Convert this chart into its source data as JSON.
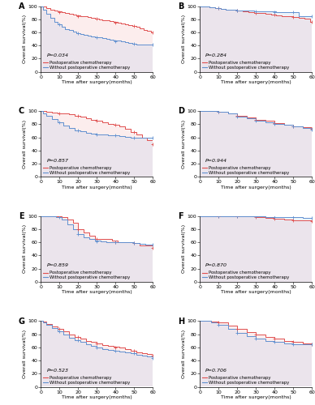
{
  "panels": [
    {
      "label": "A",
      "p_value": "P=0.034",
      "red_curve": {
        "x": [
          0,
          1,
          3,
          5,
          7,
          9,
          11,
          13,
          15,
          17,
          19,
          21,
          23,
          25,
          27,
          29,
          31,
          33,
          35,
          37,
          39,
          41,
          43,
          45,
          47,
          49,
          51,
          53,
          55,
          57,
          59,
          60
        ],
        "y": [
          100,
          99,
          97,
          95,
          93,
          92,
          91,
          90,
          88,
          87,
          86,
          85,
          84,
          83,
          82,
          81,
          80,
          79,
          78,
          77,
          76,
          75,
          74,
          72,
          71,
          70,
          68,
          66,
          64,
          62,
          60,
          60
        ]
      },
      "blue_curve": {
        "x": [
          0,
          1,
          3,
          5,
          7,
          9,
          11,
          13,
          15,
          17,
          19,
          21,
          23,
          25,
          27,
          29,
          31,
          33,
          35,
          37,
          39,
          41,
          43,
          45,
          47,
          49,
          51,
          53,
          55,
          57,
          59,
          60
        ],
        "y": [
          100,
          95,
          88,
          82,
          76,
          72,
          68,
          65,
          63,
          61,
          59,
          57,
          56,
          55,
          54,
          53,
          52,
          51,
          50,
          49,
          48,
          47,
          46,
          45,
          44,
          43,
          42,
          41,
          41,
          41,
          41,
          41
        ]
      },
      "red_censor_x": [
        10,
        20,
        30,
        40,
        50,
        60
      ],
      "red_censor_y": [
        91,
        85,
        81,
        75,
        70,
        60
      ],
      "blue_censor_x": [
        10,
        20,
        30,
        40,
        50,
        60
      ],
      "blue_censor_y": [
        72,
        59,
        53,
        46,
        43,
        41
      ]
    },
    {
      "label": "B",
      "p_value": "P=0.284",
      "red_curve": {
        "x": [
          0,
          2,
          5,
          8,
          11,
          14,
          17,
          20,
          23,
          26,
          29,
          32,
          35,
          38,
          41,
          44,
          47,
          50,
          53,
          56,
          59,
          60
        ],
        "y": [
          100,
          99,
          98,
          97,
          96,
          95,
          94,
          93,
          92,
          91,
          90,
          89,
          88,
          87,
          86,
          85,
          84,
          83,
          82,
          81,
          76,
          76
        ]
      },
      "blue_curve": {
        "x": [
          0,
          2,
          5,
          8,
          11,
          14,
          17,
          20,
          23,
          26,
          29,
          32,
          35,
          38,
          41,
          44,
          47,
          50,
          53,
          56,
          60
        ],
        "y": [
          100,
          99,
          98,
          97,
          96,
          95,
          94,
          93,
          93,
          93,
          92,
          92,
          92,
          92,
          91,
          91,
          91,
          91,
          84,
          84,
          84
        ]
      },
      "red_censor_x": [
        10,
        20,
        30,
        40,
        50,
        60
      ],
      "red_censor_y": [
        97,
        93,
        90,
        87,
        83,
        76
      ],
      "blue_censor_x": [
        10,
        20,
        30,
        40,
        50,
        60
      ],
      "blue_censor_y": [
        97,
        93,
        92,
        91,
        91,
        84
      ]
    },
    {
      "label": "C",
      "p_value": "P=0.857",
      "red_curve": {
        "x": [
          0,
          1,
          3,
          6,
          9,
          12,
          15,
          18,
          21,
          24,
          27,
          30,
          33,
          36,
          39,
          42,
          45,
          48,
          51,
          54,
          57,
          60
        ],
        "y": [
          100,
          100,
          99,
          98,
          97,
          96,
          95,
          93,
          91,
          89,
          87,
          85,
          83,
          81,
          79,
          77,
          73,
          68,
          64,
          60,
          56,
          50
        ]
      },
      "blue_curve": {
        "x": [
          0,
          1,
          3,
          6,
          9,
          12,
          15,
          18,
          21,
          24,
          27,
          30,
          33,
          36,
          39,
          42,
          45,
          48,
          51,
          54,
          57,
          60
        ],
        "y": [
          100,
          97,
          93,
          88,
          83,
          78,
          74,
          71,
          69,
          67,
          66,
          65,
          64,
          63,
          63,
          62,
          61,
          60,
          59,
          59,
          59,
          59
        ]
      },
      "red_censor_x": [
        10,
        20,
        30,
        40,
        50,
        60
      ],
      "red_censor_y": [
        97,
        93,
        85,
        79,
        68,
        50
      ],
      "blue_censor_x": [
        10,
        20,
        30,
        40,
        50,
        60
      ],
      "blue_censor_y": [
        83,
        71,
        65,
        63,
        60,
        59
      ]
    },
    {
      "label": "D",
      "p_value": "P=0.944",
      "red_curve": {
        "x": [
          0,
          3,
          6,
          10,
          15,
          20,
          25,
          30,
          35,
          40,
          45,
          50,
          55,
          60
        ],
        "y": [
          100,
          100,
          100,
          99,
          97,
          93,
          90,
          87,
          85,
          82,
          79,
          77,
          75,
          73
        ]
      },
      "blue_curve": {
        "x": [
          0,
          3,
          6,
          10,
          15,
          20,
          25,
          30,
          35,
          40,
          45,
          50,
          55,
          60
        ],
        "y": [
          100,
          100,
          100,
          99,
          97,
          92,
          89,
          86,
          83,
          81,
          79,
          77,
          74,
          72
        ]
      },
      "red_censor_x": [
        10,
        20,
        30,
        40,
        50,
        60
      ],
      "red_censor_y": [
        99,
        93,
        87,
        82,
        77,
        73
      ],
      "blue_censor_x": [
        10,
        20,
        30,
        40,
        50,
        60
      ],
      "blue_censor_y": [
        99,
        92,
        86,
        81,
        77,
        72
      ]
    },
    {
      "label": "E",
      "p_value": "P=0.859",
      "red_curve": {
        "x": [
          0,
          2,
          5,
          8,
          11,
          14,
          17,
          20,
          23,
          26,
          29,
          32,
          35,
          38,
          41,
          44,
          47,
          50,
          53,
          56,
          59,
          60
        ],
        "y": [
          100,
          100,
          100,
          100,
          98,
          95,
          90,
          80,
          75,
          70,
          65,
          65,
          65,
          63,
          60,
          60,
          60,
          59,
          55,
          55,
          55,
          52
        ]
      },
      "blue_curve": {
        "x": [
          0,
          2,
          5,
          8,
          11,
          14,
          17,
          20,
          23,
          26,
          29,
          32,
          35,
          38,
          41,
          44,
          47,
          50,
          53,
          56,
          59,
          60
        ],
        "y": [
          100,
          100,
          100,
          98,
          95,
          88,
          80,
          72,
          68,
          65,
          63,
          62,
          60,
          60,
          60,
          60,
          60,
          59,
          58,
          57,
          57,
          57
        ]
      },
      "red_censor_x": [
        10,
        20,
        30,
        40,
        50,
        60
      ],
      "red_censor_y": [
        100,
        80,
        65,
        60,
        59,
        52
      ],
      "blue_censor_x": [
        10,
        20,
        30,
        40,
        50,
        60
      ],
      "blue_censor_y": [
        98,
        72,
        62,
        60,
        59,
        57
      ]
    },
    {
      "label": "F",
      "p_value": "P=0.870",
      "red_curve": {
        "x": [
          0,
          5,
          10,
          15,
          20,
          25,
          30,
          35,
          40,
          45,
          50,
          55,
          60
        ],
        "y": [
          100,
          100,
          100,
          100,
          100,
          100,
          98,
          97,
          96,
          95,
          94,
          93,
          92
        ]
      },
      "blue_curve": {
        "x": [
          0,
          5,
          10,
          15,
          20,
          25,
          30,
          35,
          40,
          45,
          50,
          55,
          60
        ],
        "y": [
          100,
          100,
          100,
          100,
          100,
          100,
          100,
          99,
          99,
          99,
          98,
          97,
          97
        ]
      },
      "red_censor_x": [
        10,
        20,
        30,
        40,
        50,
        60
      ],
      "red_censor_y": [
        100,
        100,
        98,
        96,
        94,
        92
      ],
      "blue_censor_x": [
        10,
        20,
        30,
        40,
        50,
        60
      ],
      "blue_censor_y": [
        100,
        100,
        100,
        99,
        98,
        97
      ]
    },
    {
      "label": "G",
      "p_value": "P=0.523",
      "red_curve": {
        "x": [
          0,
          1,
          3,
          6,
          9,
          12,
          15,
          18,
          21,
          24,
          27,
          30,
          33,
          36,
          39,
          42,
          45,
          48,
          51,
          54,
          57,
          60
        ],
        "y": [
          100,
          99,
          96,
          92,
          88,
          84,
          80,
          76,
          73,
          70,
          68,
          66,
          64,
          62,
          61,
          60,
          57,
          55,
          53,
          51,
          50,
          48
        ]
      },
      "blue_curve": {
        "x": [
          0,
          1,
          3,
          6,
          9,
          12,
          15,
          18,
          21,
          24,
          27,
          30,
          33,
          36,
          39,
          42,
          45,
          48,
          51,
          54,
          57,
          60
        ],
        "y": [
          100,
          98,
          94,
          89,
          84,
          79,
          75,
          71,
          68,
          65,
          62,
          60,
          58,
          56,
          55,
          54,
          52,
          51,
          49,
          47,
          46,
          44
        ]
      },
      "red_censor_x": [
        10,
        20,
        30,
        40,
        50,
        60
      ],
      "red_censor_y": [
        88,
        76,
        66,
        60,
        55,
        48
      ],
      "blue_censor_x": [
        10,
        20,
        30,
        40,
        50,
        60
      ],
      "blue_censor_y": [
        84,
        71,
        60,
        55,
        51,
        44
      ]
    },
    {
      "label": "H",
      "p_value": "P=0.706",
      "red_curve": {
        "x": [
          0,
          3,
          6,
          10,
          15,
          20,
          25,
          30,
          35,
          40,
          45,
          50,
          55,
          60
        ],
        "y": [
          100,
          100,
          99,
          98,
          93,
          88,
          83,
          79,
          76,
          73,
          70,
          68,
          66,
          65
        ]
      },
      "blue_curve": {
        "x": [
          0,
          3,
          6,
          10,
          15,
          20,
          25,
          30,
          35,
          40,
          45,
          50,
          55,
          60
        ],
        "y": [
          100,
          100,
          98,
          95,
          88,
          82,
          77,
          73,
          70,
          68,
          66,
          65,
          65,
          65
        ]
      },
      "red_censor_x": [
        10,
        20,
        30,
        40,
        50,
        60
      ],
      "red_censor_y": [
        98,
        88,
        79,
        73,
        68,
        65
      ],
      "blue_censor_x": [
        10,
        20,
        30,
        40,
        50,
        60
      ],
      "blue_censor_y": [
        95,
        82,
        73,
        68,
        65,
        65
      ]
    }
  ],
  "red_line_color": "#E05050",
  "blue_line_color": "#6090D0",
  "red_fill_color": "#F0A0A0",
  "blue_fill_color": "#A0C0E8",
  "ylabel": "Overall survival(%)",
  "xlabel": "Time after surgery(months)",
  "ylim": [
    0,
    100
  ],
  "xlim": [
    0,
    60
  ],
  "xticks": [
    0,
    10,
    20,
    30,
    40,
    50,
    60
  ],
  "yticks": [
    0,
    20,
    40,
    60,
    80,
    100
  ],
  "legend_red": "Postoperative chemotherapy",
  "legend_blue": "Without postoperative chemotherapy",
  "tick_fontsize": 4.5,
  "label_fontsize": 4.5,
  "legend_fontsize": 3.8,
  "p_fontsize": 4.5,
  "panel_label_fontsize": 7
}
